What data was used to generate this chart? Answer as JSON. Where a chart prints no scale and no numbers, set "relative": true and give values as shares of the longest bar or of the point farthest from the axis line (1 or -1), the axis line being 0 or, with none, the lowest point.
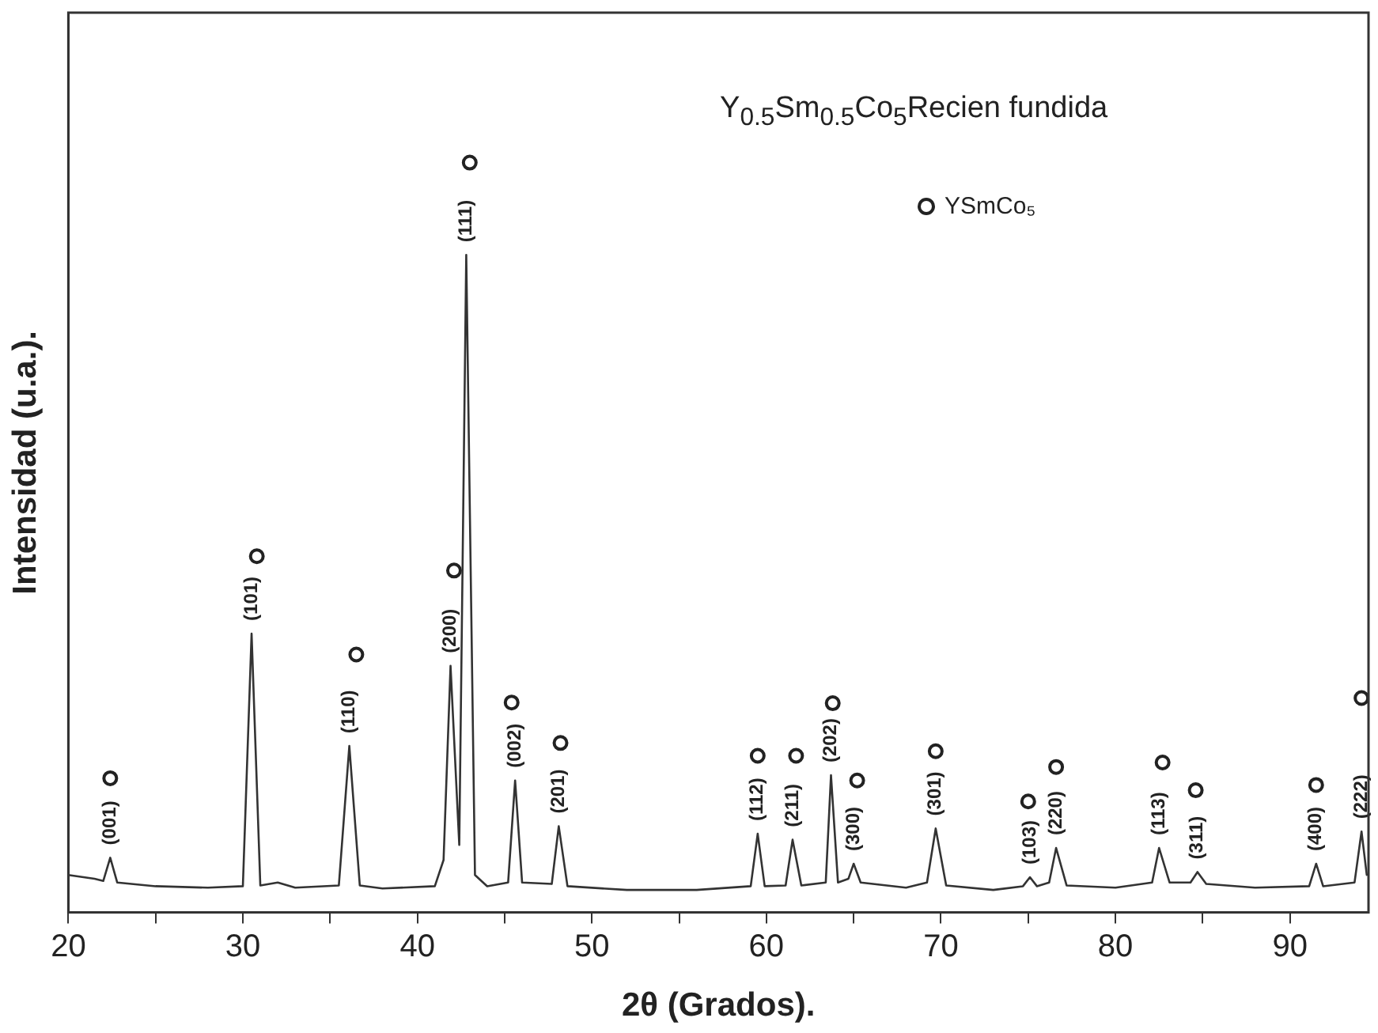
{
  "chart_data": {
    "type": "line",
    "title": "Y$_{0.5}$Sm$_{0.5}$Co$_{5}$Recien  fundida",
    "xlabel": "2θ (Grados).",
    "ylabel": "Intensidad (u.a.).",
    "relative": true,
    "xlim": [
      20,
      94.5
    ],
    "xticks": [
      20,
      {
        "value": 25,
        "label": null
      },
      30,
      {
        "value": 35,
        "label": null
      },
      40,
      {
        "value": 45,
        "label": null
      },
      50,
      {
        "value": 55,
        "label": null
      },
      60,
      {
        "value": 65,
        "label": null
      },
      70,
      {
        "value": 75,
        "label": null
      },
      80,
      {
        "value": 85,
        "label": null
      },
      90
    ],
    "grid": false,
    "legend": "top right",
    "series": [
      {
        "color": "#333333",
        "marker": "none",
        "line_style": "solid",
        "x": [
          20,
          21.5,
          22,
          22.4,
          22.8,
          25,
          28,
          30,
          30.5,
          31,
          32,
          33,
          35.5,
          36.1,
          36.7,
          38,
          41,
          41.5,
          41.9,
          42.4,
          42.8,
          43.3,
          44,
          45.2,
          45.6,
          46,
          47.7,
          48.1,
          48.6,
          52,
          56,
          59.1,
          59.5,
          59.9,
          61.1,
          61.5,
          62,
          63.4,
          63.7,
          64.1,
          64.7,
          65,
          65.4,
          68,
          69.2,
          69.7,
          70.3,
          73,
          74.7,
          75.1,
          75.5,
          76.2,
          76.6,
          77.2,
          80,
          82.1,
          82.5,
          83.1,
          84.3,
          84.7,
          85.2,
          88,
          91.1,
          91.5,
          91.9,
          93.7,
          94.1,
          94.4
        ],
        "values": [
          0.05,
          0.045,
          0.042,
          0.073,
          0.04,
          0.035,
          0.033,
          0.035,
          0.372,
          0.036,
          0.04,
          0.033,
          0.036,
          0.222,
          0.036,
          0.032,
          0.035,
          0.07,
          0.329,
          0.09,
          0.877,
          0.05,
          0.035,
          0.04,
          0.176,
          0.04,
          0.038,
          0.115,
          0.035,
          0.03,
          0.03,
          0.035,
          0.105,
          0.035,
          0.036,
          0.097,
          0.036,
          0.04,
          0.183,
          0.04,
          0.045,
          0.065,
          0.04,
          0.033,
          0.04,
          0.112,
          0.036,
          0.03,
          0.035,
          0.047,
          0.035,
          0.04,
          0.086,
          0.036,
          0.033,
          0.04,
          0.086,
          0.04,
          0.04,
          0.054,
          0.038,
          0.033,
          0.035,
          0.065,
          0.035,
          0.04,
          0.108,
          0.05
        ]
      },
      {
        "type": "scatter",
        "name": "YSmCo₅",
        "color": "#222222",
        "marker": "circle",
        "x": [
          22.4,
          30.8,
          36.5,
          42.1,
          43.0,
          45.4,
          48.2,
          59.5,
          61.7,
          63.8,
          65.2,
          69.7,
          75.0,
          76.6,
          82.7,
          84.6,
          91.5,
          94.1
        ],
        "values": [
          0.179,
          0.475,
          0.344,
          0.456,
          1,
          0.28,
          0.226,
          0.209,
          0.209,
          0.279,
          0.176,
          0.215,
          0.148,
          0.194,
          0.2,
          0.163,
          0.17,
          0.286
        ]
      }
    ],
    "annotations": [
      {
        "text": "(001)",
        "x": 22.4,
        "y": 0.073
      },
      {
        "text": "(101)",
        "x": 30.5,
        "y": 0.372
      },
      {
        "text": "(110)",
        "x": 36.1,
        "y": 0.222
      },
      {
        "text": "(200)",
        "x": 41.9,
        "y": 0.329
      },
      {
        "text": "(111)",
        "x": 42.8,
        "y": 0.877
      },
      {
        "text": "(002)",
        "x": 45.6,
        "y": 0.176
      },
      {
        "text": "(201)",
        "x": 48.1,
        "y": 0.115
      },
      {
        "text": "(112)",
        "x": 59.5,
        "y": 0.105
      },
      {
        "text": "(211)",
        "x": 61.5,
        "y": 0.097
      },
      {
        "text": "(202)",
        "x": 63.7,
        "y": 0.183
      },
      {
        "text": "(300)",
        "x": 65.0,
        "y": 0.065
      },
      {
        "text": "(301)",
        "x": 69.7,
        "y": 0.112
      },
      {
        "text": "(103)",
        "x": 75.1,
        "y": 0.047
      },
      {
        "text": "(220)",
        "x": 76.6,
        "y": 0.086
      },
      {
        "text": "(113)",
        "x": 82.5,
        "y": 0.086
      },
      {
        "text": "(311)",
        "x": 84.7,
        "y": 0.054
      },
      {
        "text": "(400)",
        "x": 91.5,
        "y": 0.065
      },
      {
        "text": "(222)",
        "x": 94.1,
        "y": 0.108
      }
    ]
  }
}
